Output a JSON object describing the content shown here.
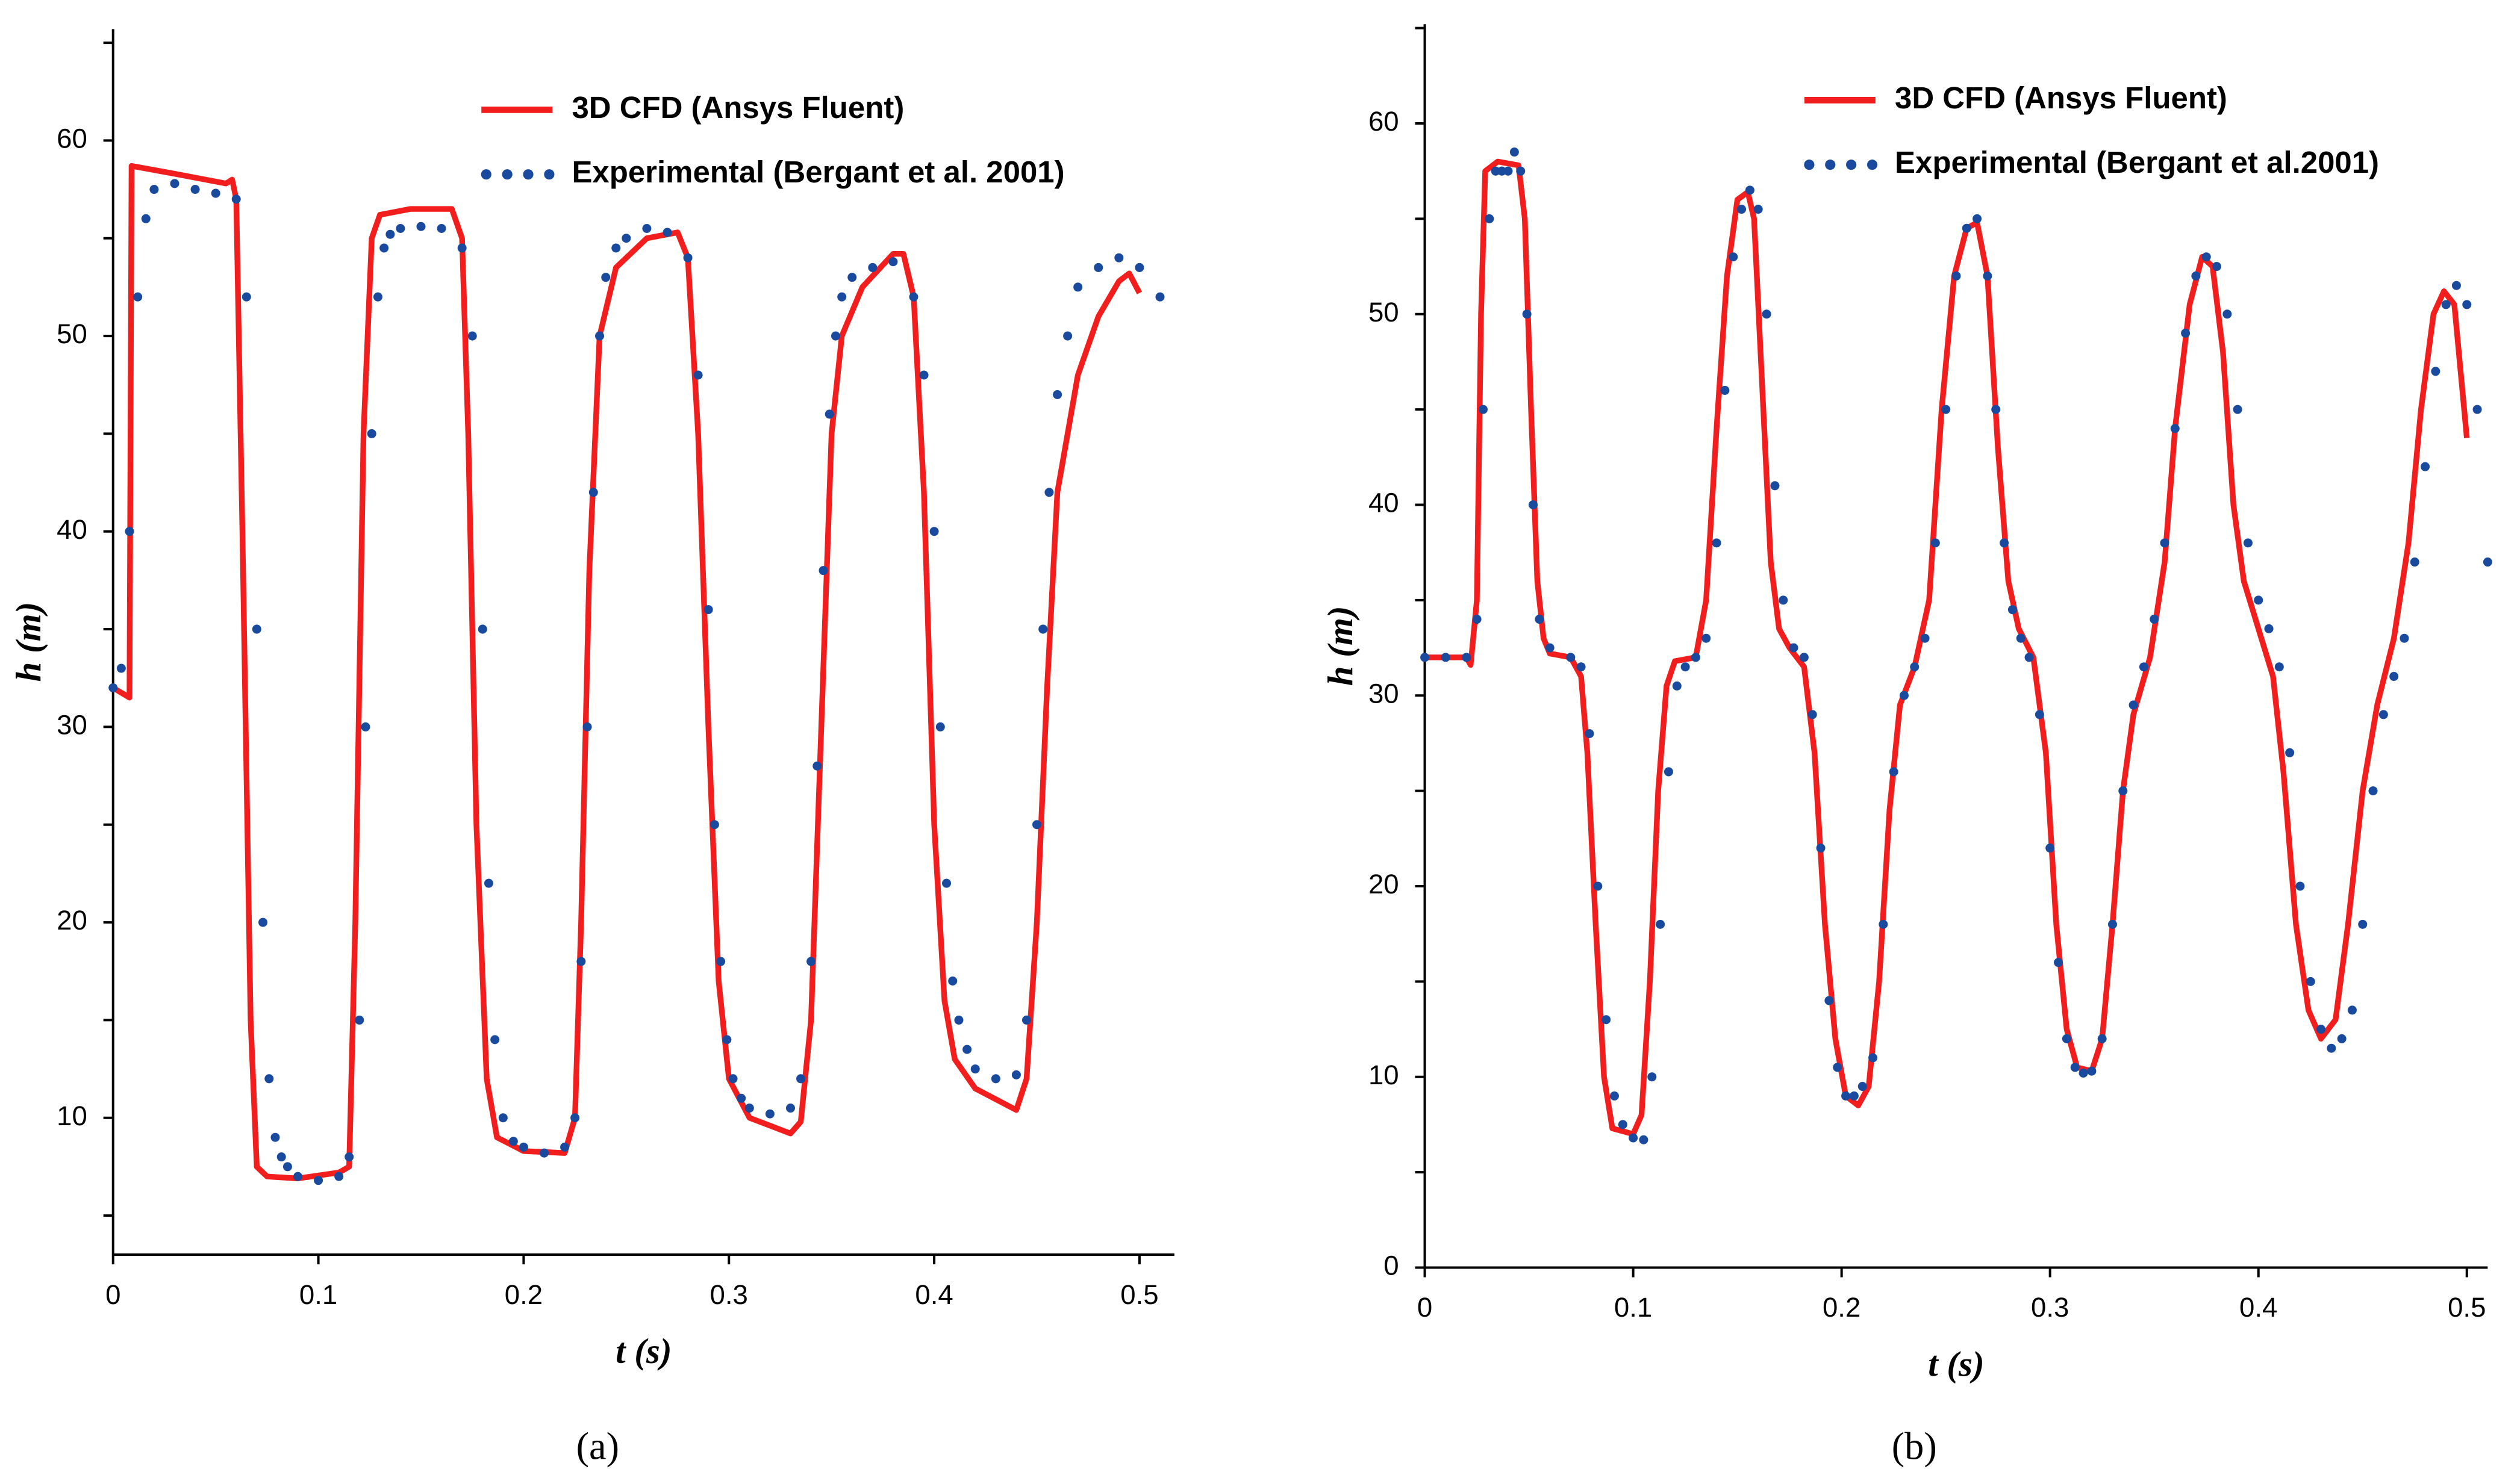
{
  "chart_data": [
    {
      "type": "line",
      "panel_label": "(a)",
      "xlabel": "t (s)",
      "ylabel": "h (m)",
      "xlim": [
        0,
        0.517
      ],
      "ylim": [
        3,
        65.7
      ],
      "xticks": [
        0,
        0.1,
        0.2,
        0.3,
        0.4,
        0.5
      ],
      "yticks": [
        10,
        20,
        30,
        40,
        50,
        60
      ],
      "yminor_ticks": [
        5,
        15,
        25,
        35,
        45,
        55,
        65
      ],
      "legend": "upper right",
      "series": [
        {
          "name": "3D CFD (Ansys Fluent)",
          "color": "#f21d1d",
          "style": "line",
          "x": [
            0,
            0.008,
            0.009,
            0.03,
            0.055,
            0.058,
            0.06,
            0.063,
            0.067,
            0.07,
            0.075,
            0.09,
            0.11,
            0.115,
            0.118,
            0.122,
            0.126,
            0.13,
            0.145,
            0.165,
            0.17,
            0.173,
            0.177,
            0.182,
            0.187,
            0.2,
            0.22,
            0.225,
            0.228,
            0.232,
            0.237,
            0.245,
            0.26,
            0.275,
            0.28,
            0.285,
            0.29,
            0.295,
            0.3,
            0.31,
            0.33,
            0.335,
            0.34,
            0.345,
            0.35,
            0.355,
            0.365,
            0.38,
            0.385,
            0.39,
            0.395,
            0.4,
            0.405,
            0.41,
            0.42,
            0.44,
            0.445,
            0.45,
            0.455,
            0.46,
            0.47,
            0.48,
            0.49,
            0.495,
            0.5
          ],
          "values": [
            32,
            31.5,
            58.7,
            58.3,
            57.8,
            58,
            57,
            40,
            15,
            7.5,
            7,
            6.9,
            7.2,
            7.5,
            20,
            45,
            55,
            56.2,
            56.5,
            56.5,
            55,
            45,
            25,
            12,
            9,
            8.3,
            8.2,
            10,
            20,
            38,
            50,
            53.5,
            55,
            55.3,
            54,
            45,
            30,
            17,
            12,
            10,
            9.2,
            9.8,
            15,
            30,
            45,
            50,
            52.5,
            54.2,
            54.2,
            52,
            42,
            25,
            16,
            13,
            11.5,
            10.4,
            12,
            20,
            32,
            42,
            48,
            51,
            52.8,
            53.2,
            52.2
          ]
        },
        {
          "name": "Experimental (Bergant et al. 2001)",
          "color": "#1a4a9e",
          "style": "dots",
          "x": [
            0,
            0.004,
            0.008,
            0.012,
            0.016,
            0.02,
            0.03,
            0.04,
            0.05,
            0.06,
            0.065,
            0.07,
            0.073,
            0.076,
            0.079,
            0.082,
            0.085,
            0.09,
            0.1,
            0.11,
            0.115,
            0.12,
            0.123,
            0.126,
            0.129,
            0.132,
            0.135,
            0.14,
            0.15,
            0.16,
            0.17,
            0.175,
            0.18,
            0.183,
            0.186,
            0.19,
            0.195,
            0.2,
            0.21,
            0.22,
            0.225,
            0.228,
            0.231,
            0.234,
            0.237,
            0.24,
            0.245,
            0.25,
            0.26,
            0.27,
            0.28,
            0.285,
            0.29,
            0.293,
            0.296,
            0.299,
            0.302,
            0.306,
            0.31,
            0.32,
            0.33,
            0.335,
            0.34,
            0.343,
            0.346,
            0.349,
            0.352,
            0.355,
            0.36,
            0.37,
            0.38,
            0.39,
            0.395,
            0.4,
            0.403,
            0.406,
            0.409,
            0.412,
            0.416,
            0.42,
            0.43,
            0.44,
            0.445,
            0.45,
            0.453,
            0.456,
            0.46,
            0.465,
            0.47,
            0.48,
            0.49,
            0.5,
            0.51
          ],
          "values": [
            32,
            33,
            40,
            52,
            56,
            57.5,
            57.8,
            57.5,
            57.3,
            57,
            52,
            35,
            20,
            12,
            9,
            8,
            7.5,
            7,
            6.8,
            7,
            8,
            15,
            30,
            45,
            52,
            54.5,
            55.2,
            55.5,
            55.6,
            55.5,
            54.5,
            50,
            35,
            22,
            14,
            10,
            8.8,
            8.5,
            8.2,
            8.5,
            10,
            18,
            30,
            42,
            50,
            53,
            54.5,
            55,
            55.5,
            55.3,
            54,
            48,
            36,
            25,
            18,
            14,
            12,
            11,
            10.5,
            10.2,
            10.5,
            12,
            18,
            28,
            38,
            46,
            50,
            52,
            53,
            53.5,
            53.8,
            52,
            48,
            40,
            30,
            22,
            17,
            15,
            13.5,
            12.5,
            12,
            12.2,
            15,
            25,
            35,
            42,
            47,
            50,
            52.5,
            53.5,
            54,
            53.5,
            52
          ]
        }
      ]
    },
    {
      "type": "line",
      "panel_label": "(b)",
      "xlabel": "t (s)",
      "ylabel": "h (m)",
      "xlim": [
        0,
        0.51
      ],
      "ylim": [
        0,
        65.2
      ],
      "xticks": [
        0,
        0.1,
        0.2,
        0.3,
        0.4,
        0.5
      ],
      "yticks": [
        0,
        10,
        20,
        30,
        40,
        50,
        60
      ],
      "yminor_ticks": [
        5,
        15,
        25,
        35,
        45,
        55,
        65
      ],
      "legend": "upper right",
      "series": [
        {
          "name": "3D CFD (Ansys Fluent)",
          "color": "#f21d1d",
          "style": "line",
          "x": [
            0,
            0.02,
            0.022,
            0.025,
            0.027,
            0.029,
            0.035,
            0.045,
            0.048,
            0.051,
            0.054,
            0.057,
            0.06,
            0.07,
            0.075,
            0.078,
            0.082,
            0.086,
            0.09,
            0.1,
            0.104,
            0.108,
            0.112,
            0.116,
            0.12,
            0.13,
            0.135,
            0.14,
            0.145,
            0.15,
            0.155,
            0.158,
            0.162,
            0.166,
            0.17,
            0.175,
            0.182,
            0.187,
            0.192,
            0.197,
            0.202,
            0.208,
            0.213,
            0.218,
            0.223,
            0.228,
            0.235,
            0.242,
            0.248,
            0.254,
            0.26,
            0.265,
            0.27,
            0.275,
            0.28,
            0.285,
            0.292,
            0.298,
            0.303,
            0.308,
            0.313,
            0.32,
            0.325,
            0.33,
            0.335,
            0.34,
            0.348,
            0.355,
            0.36,
            0.367,
            0.373,
            0.378,
            0.383,
            0.388,
            0.393,
            0.4,
            0.407,
            0.412,
            0.418,
            0.424,
            0.43,
            0.437,
            0.443,
            0.45,
            0.457,
            0.465,
            0.472,
            0.478,
            0.484,
            0.489,
            0.494,
            0.5
          ],
          "values": [
            32,
            32,
            31.6,
            35,
            50,
            57.5,
            58,
            57.8,
            55,
            45,
            36,
            33,
            32.2,
            32,
            31,
            27,
            18,
            10,
            7.3,
            7,
            8,
            15,
            25,
            30.5,
            31.8,
            32,
            35,
            44,
            52,
            56,
            56.4,
            55,
            46,
            37,
            33.5,
            32.5,
            31.5,
            27,
            18,
            12,
            9,
            8.5,
            9.5,
            15,
            24,
            29.5,
            31.5,
            35,
            45,
            52,
            54.5,
            54.8,
            52,
            43,
            36,
            33.5,
            32,
            27,
            18,
            12.5,
            10.5,
            10.3,
            12,
            18,
            25,
            29,
            32,
            37,
            44,
            50.5,
            53,
            52.5,
            48,
            40,
            36,
            33.5,
            31,
            26,
            18,
            13.5,
            12,
            13,
            18,
            25,
            29.5,
            33,
            38,
            45,
            50,
            51.2,
            50.5,
            43.5
          ]
        },
        {
          "name": "Experimental (Bergant et al.2001)",
          "color": "#1a4a9e",
          "style": "dots",
          "x": [
            0,
            0.01,
            0.02,
            0.025,
            0.028,
            0.031,
            0.034,
            0.037,
            0.04,
            0.043,
            0.046,
            0.049,
            0.052,
            0.055,
            0.06,
            0.07,
            0.075,
            0.079,
            0.083,
            0.087,
            0.091,
            0.095,
            0.1,
            0.105,
            0.109,
            0.113,
            0.117,
            0.121,
            0.125,
            0.13,
            0.135,
            0.14,
            0.144,
            0.148,
            0.152,
            0.156,
            0.16,
            0.164,
            0.168,
            0.172,
            0.177,
            0.182,
            0.186,
            0.19,
            0.194,
            0.198,
            0.202,
            0.206,
            0.21,
            0.215,
            0.22,
            0.225,
            0.23,
            0.235,
            0.24,
            0.245,
            0.25,
            0.255,
            0.26,
            0.265,
            0.27,
            0.274,
            0.278,
            0.282,
            0.286,
            0.29,
            0.295,
            0.3,
            0.304,
            0.308,
            0.312,
            0.316,
            0.32,
            0.325,
            0.33,
            0.335,
            0.34,
            0.345,
            0.35,
            0.355,
            0.36,
            0.365,
            0.37,
            0.375,
            0.38,
            0.385,
            0.39,
            0.395,
            0.4,
            0.405,
            0.41,
            0.415,
            0.42,
            0.425,
            0.43,
            0.435,
            0.44,
            0.445,
            0.45,
            0.455,
            0.46,
            0.465,
            0.47,
            0.475,
            0.48,
            0.485,
            0.49,
            0.495,
            0.5,
            0.505,
            0.51
          ],
          "values": [
            32,
            32,
            32,
            34,
            45,
            55,
            57.5,
            57.5,
            57.5,
            58.5,
            57.5,
            50,
            40,
            34,
            32.5,
            32,
            31.5,
            28,
            20,
            13,
            9,
            7.5,
            6.8,
            6.7,
            10,
            18,
            26,
            30.5,
            31.5,
            32,
            33,
            38,
            46,
            53,
            55.5,
            56.5,
            55.5,
            50,
            41,
            35,
            32.5,
            32,
            29,
            22,
            14,
            10.5,
            9,
            9,
            9.5,
            11,
            18,
            26,
            30,
            31.5,
            33,
            38,
            45,
            52,
            54.5,
            55,
            52,
            45,
            38,
            34.5,
            33,
            32,
            29,
            22,
            16,
            12,
            10.5,
            10.2,
            10.3,
            12,
            18,
            25,
            29.5,
            31.5,
            34,
            38,
            44,
            49,
            52,
            53,
            52.5,
            50,
            45,
            38,
            35,
            33.5,
            31.5,
            27,
            20,
            15,
            12.5,
            11.5,
            12,
            13.5,
            18,
            25,
            29,
            31,
            33,
            37,
            42,
            47,
            50.5,
            51.5,
            50.5,
            45,
            37
          ]
        }
      ]
    }
  ]
}
